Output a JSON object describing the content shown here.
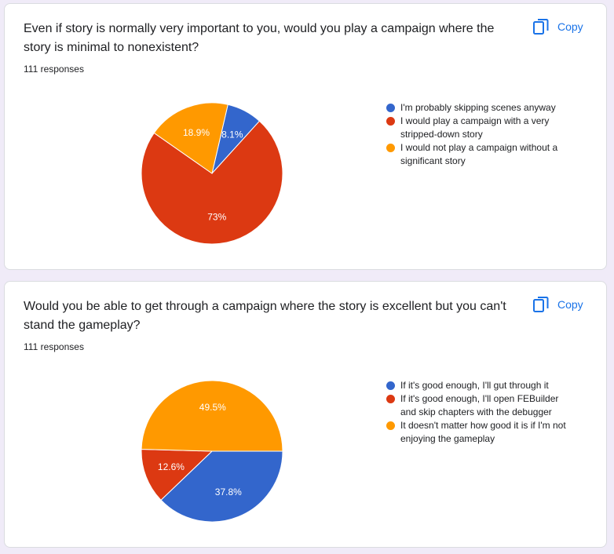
{
  "copy_label": "Copy",
  "colors": {
    "blue": "#3366cc",
    "red": "#dc3912",
    "orange": "#ff9900",
    "accent": "#1a73e8"
  },
  "cards": [
    {
      "question": "Even if story is normally very important to you, would you play a campaign where the story is minimal to nonexistent?",
      "responses": "111 responses"
    },
    {
      "question": "Would you be able to get through a campaign where the story is excellent but you can't stand the gameplay?",
      "responses": "111 responses"
    }
  ],
  "chart_data": [
    {
      "type": "pie",
      "categories": [
        "I'm probably skipping scenes anyway",
        "I would play a campaign with a very stripped-down story",
        "I would not play a campaign without a significant story"
      ],
      "values": [
        8.1,
        73,
        18.9
      ],
      "labels": [
        "8.1%",
        "73%",
        "18.9%"
      ],
      "colors": [
        "#3366cc",
        "#dc3912",
        "#ff9900"
      ],
      "legend": "right"
    },
    {
      "type": "pie",
      "categories": [
        "If it's good enough, I'll gut through it",
        "If it's good enough, I'll open FEBuilder and skip chapters with the debugger",
        "It doesn't matter how good it is if I'm not enjoying the gameplay"
      ],
      "values": [
        37.8,
        12.6,
        49.5
      ],
      "labels": [
        "37.8%",
        "12.6%",
        "49.5%"
      ],
      "colors": [
        "#3366cc",
        "#dc3912",
        "#ff9900"
      ],
      "legend": "right"
    }
  ]
}
